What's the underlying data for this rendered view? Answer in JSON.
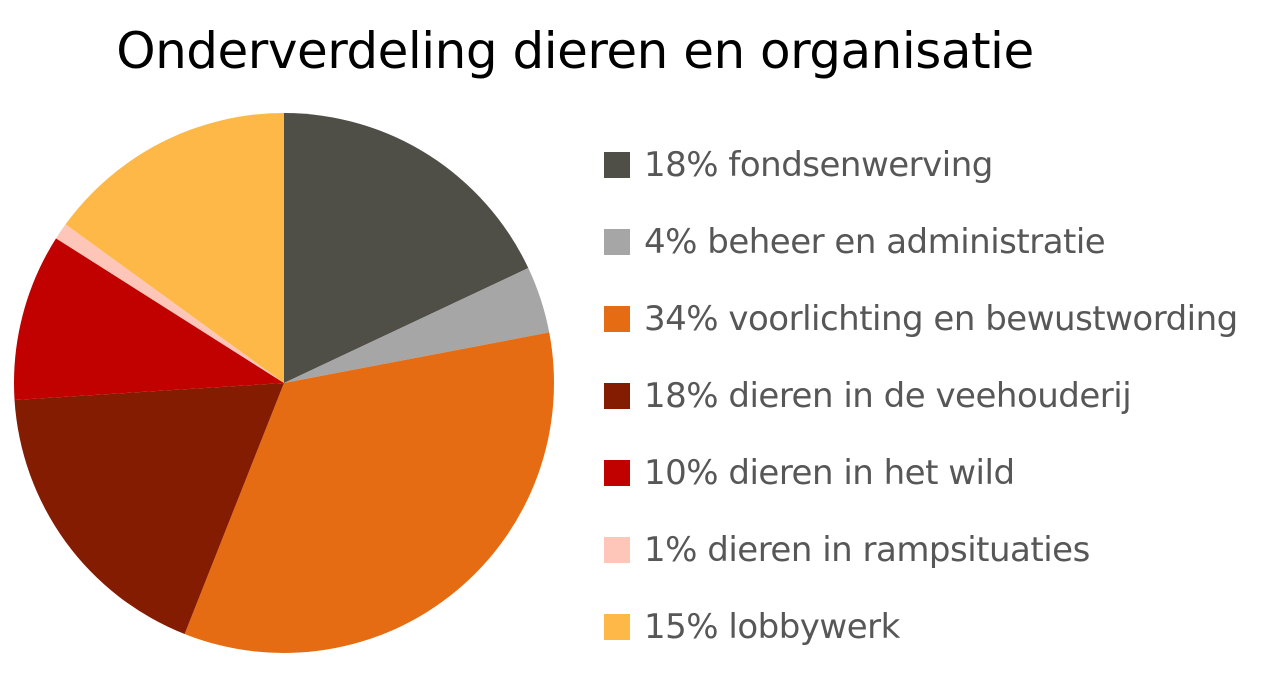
{
  "chart_data": {
    "type": "pie",
    "title": "Onderverdeling dieren en organisatie",
    "slices": [
      {
        "label": "18% fondsenwerving",
        "value": 18,
        "color": "#4f4f47"
      },
      {
        "label": "4% beheer en administratie",
        "value": 4,
        "color": "#a6a6a6"
      },
      {
        "label": "34% voorlichting en bewustwording",
        "value": 34,
        "color": "#e66c13"
      },
      {
        "label": "18% dieren in de veehouderij",
        "value": 18,
        "color": "#841c02"
      },
      {
        "label": "10% dieren in het wild",
        "value": 10,
        "color": "#c10000"
      },
      {
        "label": "1% dieren in rampsituaties",
        "value": 1,
        "color": "#fdc6b8"
      },
      {
        "label": "15% lobbywerk",
        "value": 15,
        "color": "#feb848"
      }
    ],
    "legend_position": "right"
  }
}
